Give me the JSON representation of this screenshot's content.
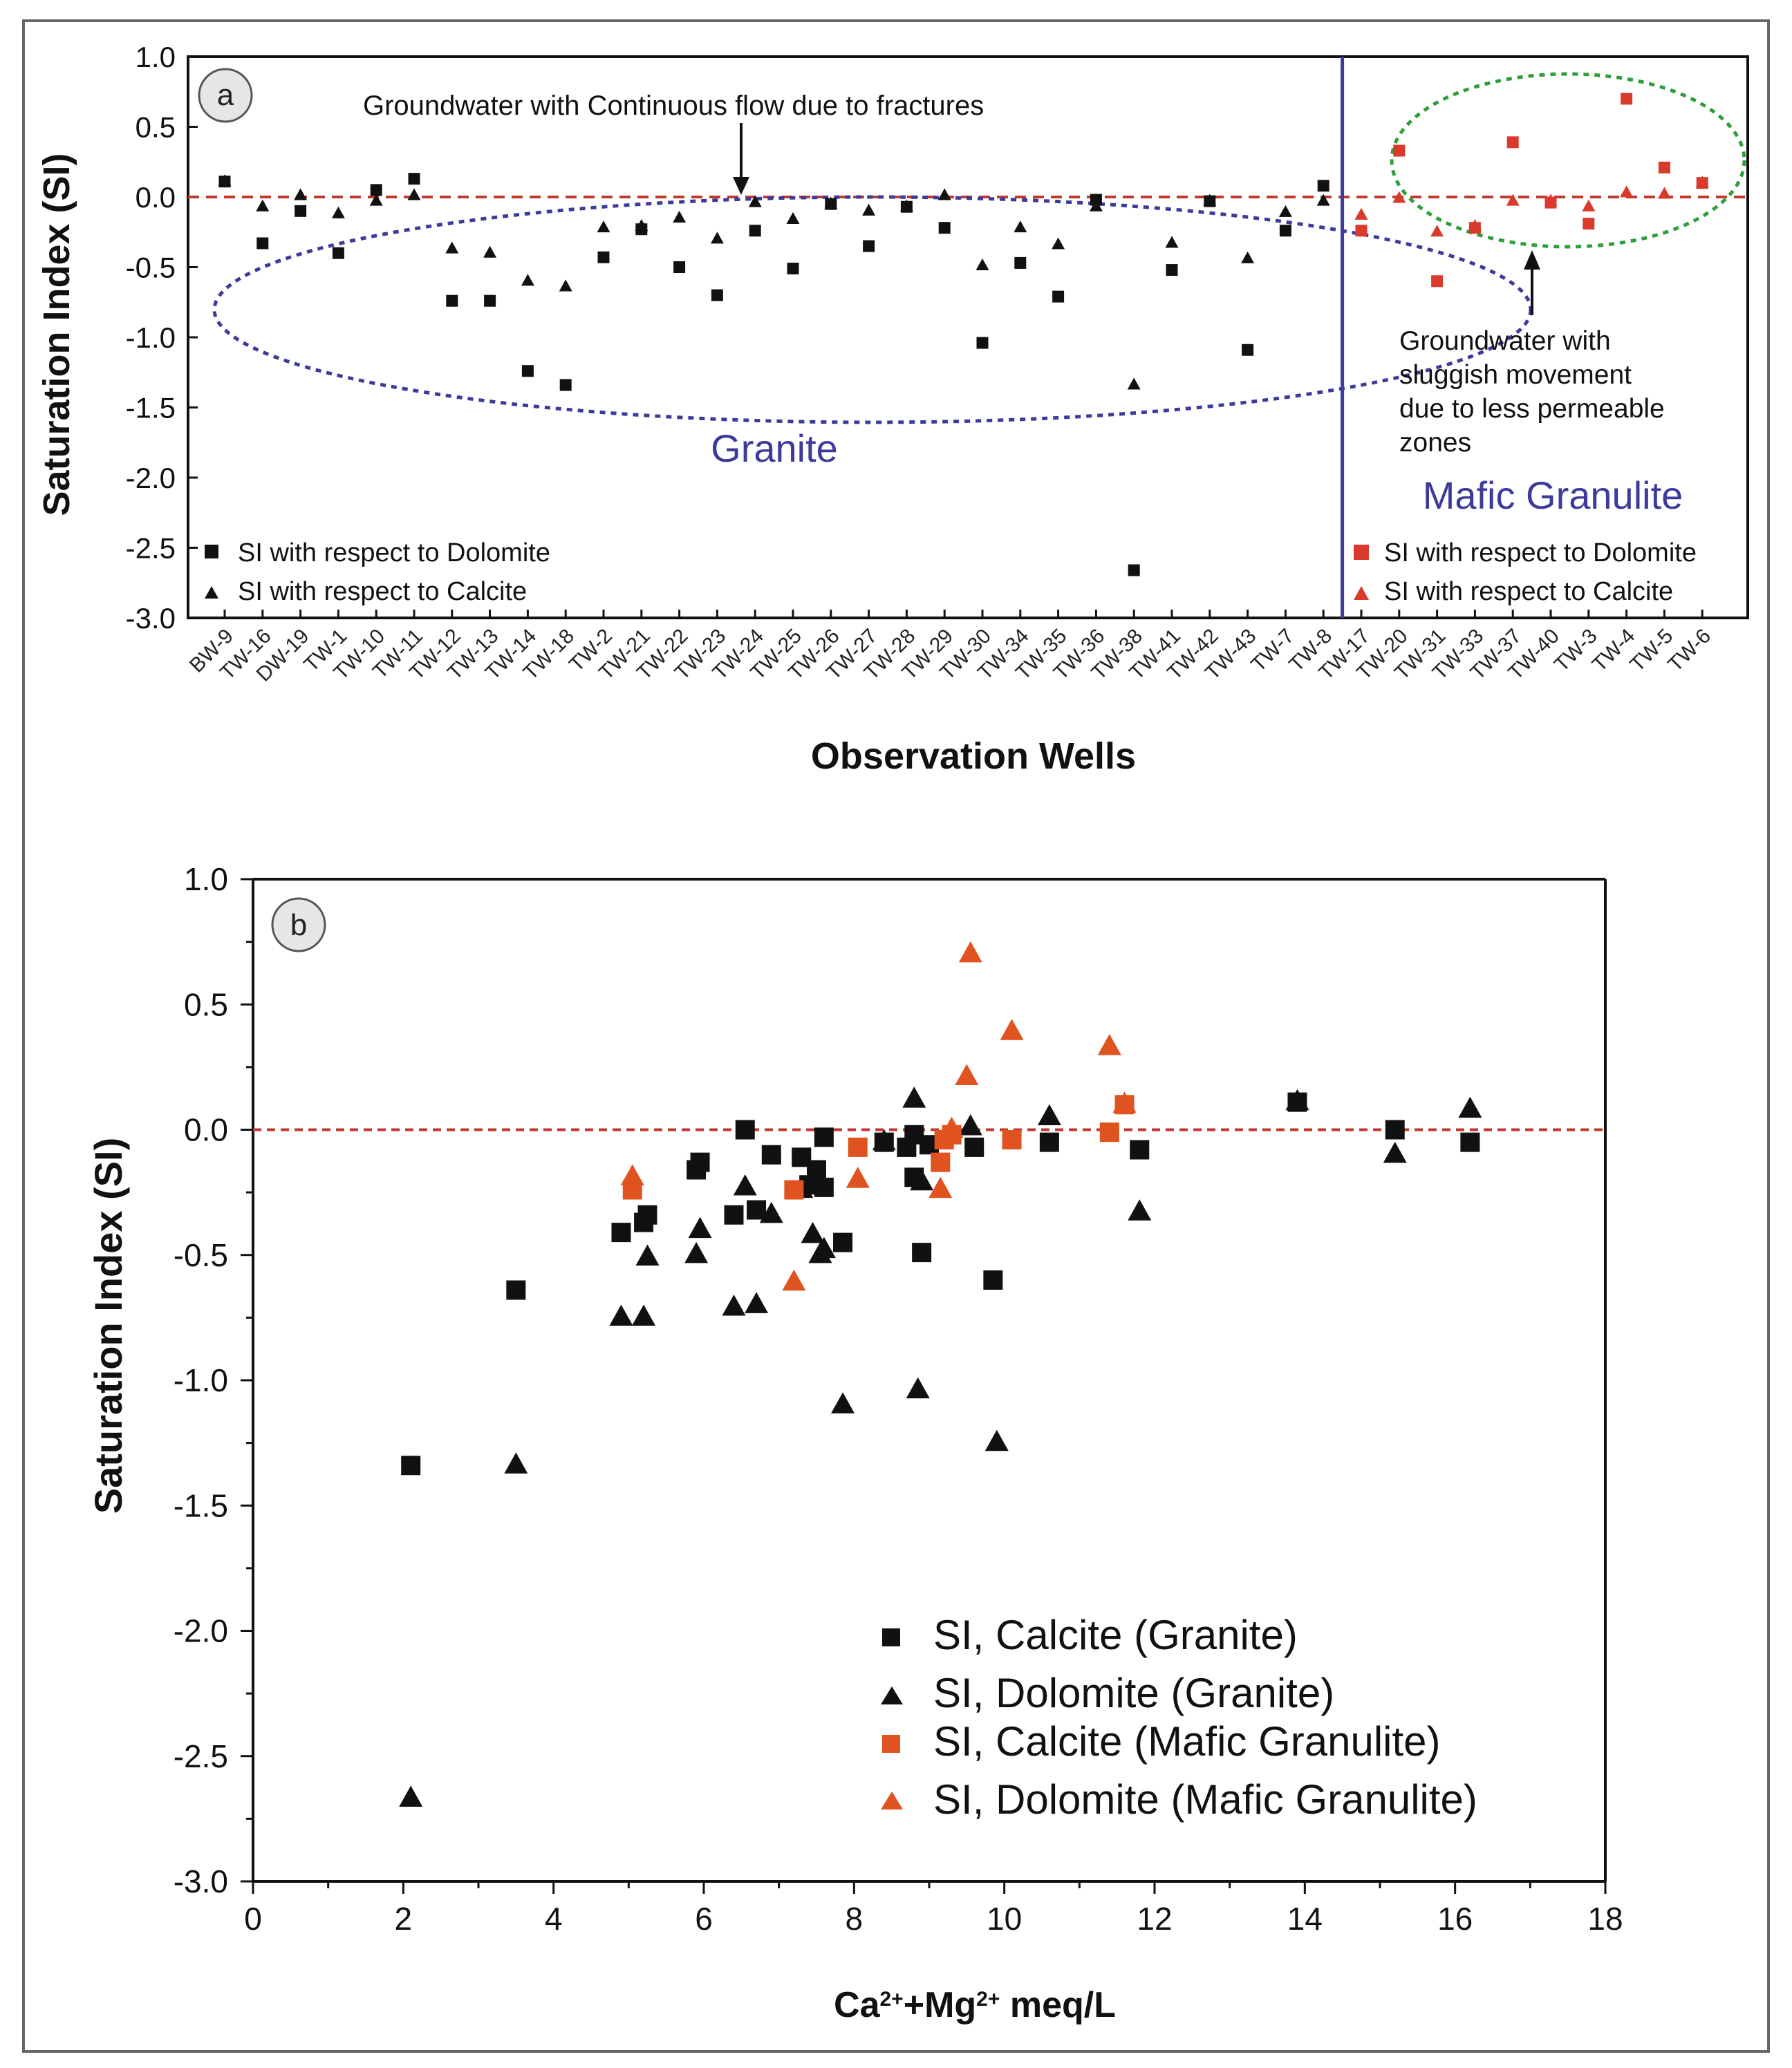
{
  "colors": {
    "black": "#111111",
    "red": "#d93a2b",
    "orange": "#e0521f",
    "blue": "#3c3a9a",
    "green": "#2e9e3a",
    "refline": "#c0392b"
  },
  "chart_data": [
    {
      "panel": "a",
      "type": "scatter",
      "ylabel": "Saturation Index (SI)",
      "xlabel": "Observation Wells",
      "ylim": [
        -3.0,
        1.0
      ],
      "yticks": [
        "1.0",
        "0.5",
        "0.0",
        "-0.5",
        "-1.0",
        "-1.5",
        "-2.0",
        "-2.5",
        "-3.0"
      ],
      "reference_line": 0.0,
      "categories": [
        "BW-9",
        "TW-16",
        "DW-19",
        "TW-1",
        "TW-10",
        "TW-11",
        "TW-12",
        "TW-13",
        "TW-14",
        "TW-18",
        "TW-2",
        "TW-21",
        "TW-22",
        "TW-23",
        "TW-24",
        "TW-25",
        "TW-26",
        "TW-27",
        "TW-28",
        "TW-29",
        "TW-30",
        "TW-34",
        "TW-35",
        "TW-36",
        "TW-38",
        "TW-41",
        "TW-42",
        "TW-43",
        "TW-7",
        "TW-8",
        "TW-17",
        "TW-20",
        "TW-31",
        "TW-33",
        "TW-37",
        "TW-40",
        "TW-3",
        "TW-4",
        "TW-5",
        "TW-6"
      ],
      "granite_count": 30,
      "series": [
        {
          "name": "SI with respect to Dolomite",
          "group": "Granite",
          "marker": "square",
          "color": "black",
          "values": [
            0.11,
            -0.33,
            -0.1,
            -0.4,
            0.05,
            0.13,
            -0.74,
            -0.74,
            -1.24,
            -1.34,
            -0.43,
            -0.23,
            -0.5,
            -0.7,
            -0.24,
            -0.51,
            -0.05,
            -0.35,
            -0.07,
            -0.22,
            -1.04,
            -0.47,
            -0.71,
            -0.02,
            -2.66,
            -0.52,
            -0.03,
            -1.09,
            -0.24,
            0.08
          ]
        },
        {
          "name": "SI with respect to Calcite",
          "group": "Granite",
          "marker": "triangle",
          "color": "black",
          "values": [
            0.12,
            -0.06,
            0.02,
            -0.11,
            -0.02,
            0.02,
            -0.36,
            -0.39,
            -0.59,
            -0.63,
            -0.21,
            -0.2,
            -0.14,
            -0.29,
            -0.03,
            -0.15,
            -0.04,
            -0.09,
            -0.06,
            0.02,
            -0.48,
            -0.21,
            -0.33,
            -0.06,
            -1.33,
            -0.32,
            -0.02,
            -0.43,
            -0.1,
            -0.02
          ]
        },
        {
          "name": "SI with respect to Dolomite",
          "group": "Mafic Granulite",
          "marker": "square",
          "color": "red",
          "values": [
            -0.24,
            0.33,
            -0.6,
            -0.22,
            0.39,
            -0.04,
            -0.19,
            0.7,
            0.21,
            0.1
          ]
        },
        {
          "name": "SI with respect to Calcite",
          "group": "Mafic Granulite",
          "marker": "triangle",
          "color": "red",
          "values": [
            -0.12,
            0.0,
            -0.24,
            -0.2,
            -0.02,
            -0.02,
            -0.06,
            0.04,
            0.03,
            0.11
          ]
        }
      ],
      "annotations": {
        "panel_label": "a",
        "top_note": "Groundwater with Continuous flow due to fractures",
        "right_note": [
          "Groundwater with",
          "sluggish movement",
          "due to less permeable",
          "zones"
        ],
        "granite_label": "Granite",
        "mafic_label": "Mafic Granulite"
      },
      "legend": {
        "left": [
          "SI with respect to Dolomite",
          "SI with respect to Calcite"
        ],
        "right": [
          "SI with respect to Dolomite",
          "SI with respect to Calcite"
        ]
      }
    },
    {
      "panel": "b",
      "type": "scatter",
      "ylabel": "Saturation Index (SI)",
      "xlabel_main": "Ca",
      "xlabel_sup1": "2+",
      "xlabel_mid": "+Mg",
      "xlabel_sup2": "2+",
      "xlabel_end": " meq/L",
      "xlim": [
        0,
        18
      ],
      "ylim": [
        -3.0,
        1.0
      ],
      "xticks": [
        "0",
        "2",
        "4",
        "6",
        "8",
        "10",
        "12",
        "14",
        "16",
        "18"
      ],
      "yticks": [
        "1.0",
        "0.5",
        "0.0",
        "-0.5",
        "-1.0",
        "-1.5",
        "-2.0",
        "-2.5",
        "-3.0"
      ],
      "reference_line": 0.0,
      "series": [
        {
          "name": "SI, Calcite (Granite)",
          "marker": "square",
          "color": "black",
          "points": [
            [
              2.1,
              -1.34
            ],
            [
              3.5,
              -0.64
            ],
            [
              4.9,
              -0.41
            ],
            [
              5.2,
              -0.37
            ],
            [
              5.25,
              -0.34
            ],
            [
              5.9,
              -0.16
            ],
            [
              5.95,
              -0.13
            ],
            [
              6.4,
              -0.34
            ],
            [
              6.55,
              0.0
            ],
            [
              6.7,
              -0.32
            ],
            [
              6.9,
              -0.1
            ],
            [
              7.3,
              -0.11
            ],
            [
              7.4,
              -0.22
            ],
            [
              7.5,
              -0.16
            ],
            [
              7.6,
              -0.23
            ],
            [
              7.6,
              -0.03
            ],
            [
              7.85,
              -0.45
            ],
            [
              8.4,
              -0.05
            ],
            [
              8.7,
              -0.07
            ],
            [
              8.8,
              -0.19
            ],
            [
              8.8,
              -0.02
            ],
            [
              8.9,
              -0.49
            ],
            [
              9.0,
              -0.06
            ],
            [
              9.6,
              -0.07
            ],
            [
              9.85,
              -0.6
            ],
            [
              10.6,
              -0.05
            ],
            [
              11.8,
              -0.08
            ],
            [
              13.9,
              0.11
            ],
            [
              15.2,
              0.0
            ],
            [
              16.2,
              -0.05
            ]
          ]
        },
        {
          "name": "SI, Dolomite (Granite)",
          "marker": "triangle",
          "color": "black",
          "points": [
            [
              2.1,
              -2.66
            ],
            [
              3.5,
              -1.33
            ],
            [
              4.9,
              -0.74
            ],
            [
              5.2,
              -0.74
            ],
            [
              5.25,
              -0.5
            ],
            [
              5.9,
              -0.49
            ],
            [
              5.95,
              -0.39
            ],
            [
              6.4,
              -0.7
            ],
            [
              6.55,
              -0.22
            ],
            [
              6.7,
              -0.69
            ],
            [
              6.9,
              -0.33
            ],
            [
              7.3,
              -0.23
            ],
            [
              7.45,
              -0.41
            ],
            [
              7.55,
              -0.49
            ],
            [
              7.6,
              -0.47
            ],
            [
              7.85,
              -1.09
            ],
            [
              8.4,
              -0.04
            ],
            [
              8.8,
              0.13
            ],
            [
              8.85,
              -1.03
            ],
            [
              8.9,
              -0.2
            ],
            [
              9.55,
              0.02
            ],
            [
              9.9,
              -1.24
            ],
            [
              10.6,
              0.06
            ],
            [
              11.8,
              -0.32
            ],
            [
              13.9,
              0.12
            ],
            [
              15.2,
              -0.09
            ],
            [
              16.2,
              0.09
            ]
          ]
        },
        {
          "name": "SI, Calcite (Mafic Granulite)",
          "marker": "square",
          "color": "orange",
          "points": [
            [
              5.05,
              -0.24
            ],
            [
              7.2,
              -0.24
            ],
            [
              8.05,
              -0.07
            ],
            [
              9.15,
              -0.13
            ],
            [
              9.2,
              -0.04
            ],
            [
              9.3,
              -0.02
            ],
            [
              10.1,
              -0.04
            ],
            [
              11.4,
              -0.01
            ],
            [
              11.6,
              0.1
            ]
          ]
        },
        {
          "name": "SI, Dolomite (Mafic Granulite)",
          "marker": "triangle",
          "color": "orange",
          "points": [
            [
              5.05,
              -0.18
            ],
            [
              7.2,
              -0.6
            ],
            [
              8.05,
              -0.19
            ],
            [
              9.15,
              -0.23
            ],
            [
              9.3,
              0.01
            ],
            [
              9.5,
              0.22
            ],
            [
              9.55,
              0.71
            ],
            [
              10.1,
              0.4
            ],
            [
              11.4,
              0.34
            ],
            [
              11.6,
              0.11
            ]
          ]
        }
      ],
      "annotations": {
        "panel_label": "b"
      },
      "legend": [
        "SI, Calcite (Granite)",
        "SI, Dolomite (Granite)",
        "SI, Calcite (Mafic Granulite)",
        "SI, Dolomite (Mafic Granulite)"
      ]
    }
  ]
}
